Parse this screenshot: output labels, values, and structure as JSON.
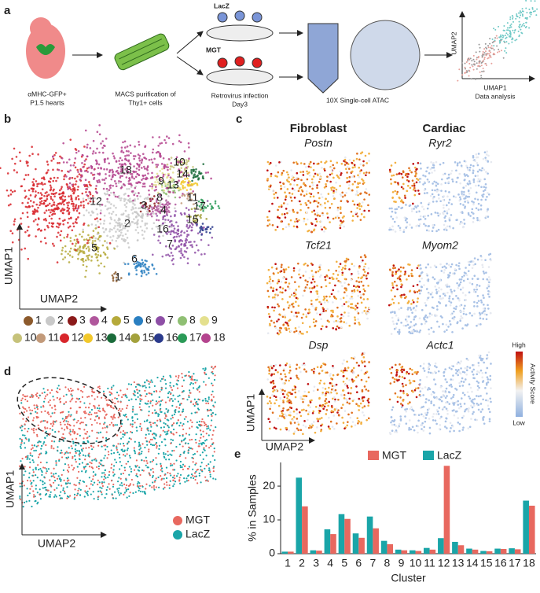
{
  "panels": {
    "a": {
      "label": "a",
      "mouse": [
        "αMHC-GFP+",
        "P1.5 hearts"
      ],
      "macs": [
        "MACS purification of",
        "Thy1+ cells"
      ],
      "groups": [
        "LacZ",
        "MGT"
      ],
      "infection": [
        "Retrovirus infection",
        "Day3"
      ],
      "atac": "10X Single-cell ATAC",
      "analysis": {
        "x": "UMAP1",
        "y": "UMAP2",
        "caption": "Data analysis"
      }
    },
    "b": {
      "label": "b",
      "xlabel": "UMAP2",
      "ylabel": "UMAP1",
      "clusters": [
        {
          "label": "1",
          "color": "#8c5a2c"
        },
        {
          "label": "2",
          "color": "#c9c9c9"
        },
        {
          "label": "3",
          "color": "#8b1a1a"
        },
        {
          "label": "4",
          "color": "#b0579c"
        },
        {
          "label": "5",
          "color": "#b5a93a"
        },
        {
          "label": "6",
          "color": "#2a7fc1"
        },
        {
          "label": "7",
          "color": "#8e4fa6"
        },
        {
          "label": "8",
          "color": "#8fbf73"
        },
        {
          "label": "9",
          "color": "#e4e08e"
        },
        {
          "label": "10",
          "color": "#c6c27a"
        },
        {
          "label": "11",
          "color": "#c29a7a"
        },
        {
          "label": "12",
          "color": "#d8262b"
        },
        {
          "label": "13",
          "color": "#f2c82b"
        },
        {
          "label": "14",
          "color": "#1a6b3a"
        },
        {
          "label": "15",
          "color": "#a3a13c"
        },
        {
          "label": "16",
          "color": "#2b3b8c"
        },
        {
          "label": "17",
          "color": "#2a9a57"
        },
        {
          "label": "18",
          "color": "#b4448e"
        }
      ]
    },
    "c": {
      "label": "c",
      "columns": [
        "Fibroblast",
        "Cardiac"
      ],
      "genes": [
        [
          "Postn",
          "Ryr2"
        ],
        [
          "Tcf21",
          "Myom2"
        ],
        [
          "Dsp",
          "Actc1"
        ]
      ],
      "colorbar": {
        "title": "Activity Score",
        "high": "High",
        "low": "Low"
      },
      "xlabel": "UMAP2",
      "ylabel": "UMAP1"
    },
    "d": {
      "label": "d",
      "xlabel": "UMAP2",
      "ylabel": "UMAP1",
      "groups": [
        {
          "name": "MGT",
          "color": "#e8685f"
        },
        {
          "name": "LacZ",
          "color": "#1aa5a8"
        }
      ]
    },
    "e": {
      "label": "e"
    }
  },
  "chart_data": {
    "type": "bar",
    "xlabel": "Cluster",
    "ylabel": "% in Samples",
    "categories": [
      "1",
      "2",
      "3",
      "4",
      "5",
      "6",
      "7",
      "8",
      "9",
      "10",
      "11",
      "12",
      "13",
      "14",
      "15",
      "16",
      "17",
      "18"
    ],
    "series": [
      {
        "name": "LacZ",
        "color": "#1aa5a8",
        "values": [
          0.6,
          22.5,
          1.0,
          7.2,
          11.7,
          6.0,
          11.0,
          3.8,
          1.2,
          1.0,
          1.7,
          4.6,
          3.5,
          1.5,
          0.8,
          1.5,
          1.6,
          15.7
        ]
      },
      {
        "name": "MGT",
        "color": "#e8685f",
        "values": [
          0.6,
          14,
          0.9,
          5.8,
          10.3,
          4.7,
          7.5,
          2.8,
          1.0,
          0.8,
          1.2,
          26,
          2.5,
          1.2,
          0.7,
          1.4,
          1.3,
          14.2
        ]
      }
    ],
    "legend_order": [
      "MGT",
      "LacZ"
    ],
    "ylim": [
      0,
      27
    ],
    "yticks": [
      0,
      10,
      20
    ]
  }
}
